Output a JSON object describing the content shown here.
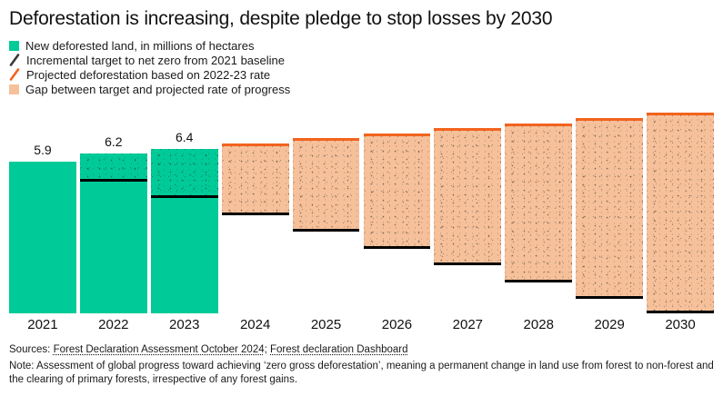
{
  "title": "Deforestation is increasing, despite pledge to stop losses by 2030",
  "legend": {
    "items": [
      {
        "label": "New deforested land, in millions of hectares",
        "swatch": "square",
        "color": "#00cb98",
        "icon": "new-deforested-swatch-icon"
      },
      {
        "label": "Incremental target to net zero from 2021 baseline",
        "swatch": "slash",
        "color": "#3a3a3a",
        "icon": "target-slash-icon"
      },
      {
        "label": "Projected deforestation based on 2022-23 rate",
        "swatch": "slash",
        "color": "#f2631e",
        "icon": "projected-slash-icon"
      },
      {
        "label": "Gap between target and projected rate of progress",
        "swatch": "square",
        "color": "#f6c19a",
        "icon": "gap-swatch-icon"
      }
    ]
  },
  "colors": {
    "actual": "#00cb98",
    "gap": "#f6c19a",
    "projected_line": "#f2631e",
    "target_line": "#000000",
    "text": "#1a1a1a"
  },
  "chart_data": {
    "type": "bar",
    "title": "Deforestation is increasing, despite pledge to stop losses by 2030",
    "xlabel": "",
    "ylabel": "New deforested land, in millions of hectares",
    "ylim": [
      0,
      8.3
    ],
    "grid": false,
    "legend_position": "top-left",
    "categories": [
      "2021",
      "2022",
      "2023",
      "2024",
      "2025",
      "2026",
      "2027",
      "2028",
      "2029",
      "2030"
    ],
    "series": [
      {
        "name": "New deforested land, in millions of hectares",
        "values": [
          5.9,
          6.2,
          6.4,
          null,
          null,
          null,
          null,
          null,
          null,
          null
        ]
      },
      {
        "name": "Incremental target to net zero from 2021 baseline",
        "values": [
          null,
          5.24,
          4.59,
          3.93,
          3.28,
          2.62,
          1.97,
          1.31,
          0.66,
          0
        ]
      },
      {
        "name": "Projected deforestation based on 2022-23 rate",
        "values": [
          null,
          null,
          null,
          6.6,
          6.8,
          7.0,
          7.2,
          7.4,
          7.6,
          7.8
        ]
      },
      {
        "name": "Gap between target and projected rate of progress",
        "values": [
          null,
          null,
          null,
          2.67,
          3.52,
          4.38,
          5.23,
          6.09,
          6.94,
          7.8
        ]
      }
    ],
    "value_labels": {
      "2021": "5.9",
      "2022": "6.2",
      "2023": "6.4"
    }
  },
  "footer": {
    "sources_prefix": "Sources: ",
    "source_links": [
      "Forest Declaration Assessment October 2024",
      "Forest declaration Dashboard"
    ],
    "sources_separator": "; ",
    "note": "Note: Assessment of global progress toward achieving ‘zero gross deforestation’, meaning a permanent change in land use from forest to non-forest and the clearing of primary forests, irrespective of any forest gains."
  }
}
